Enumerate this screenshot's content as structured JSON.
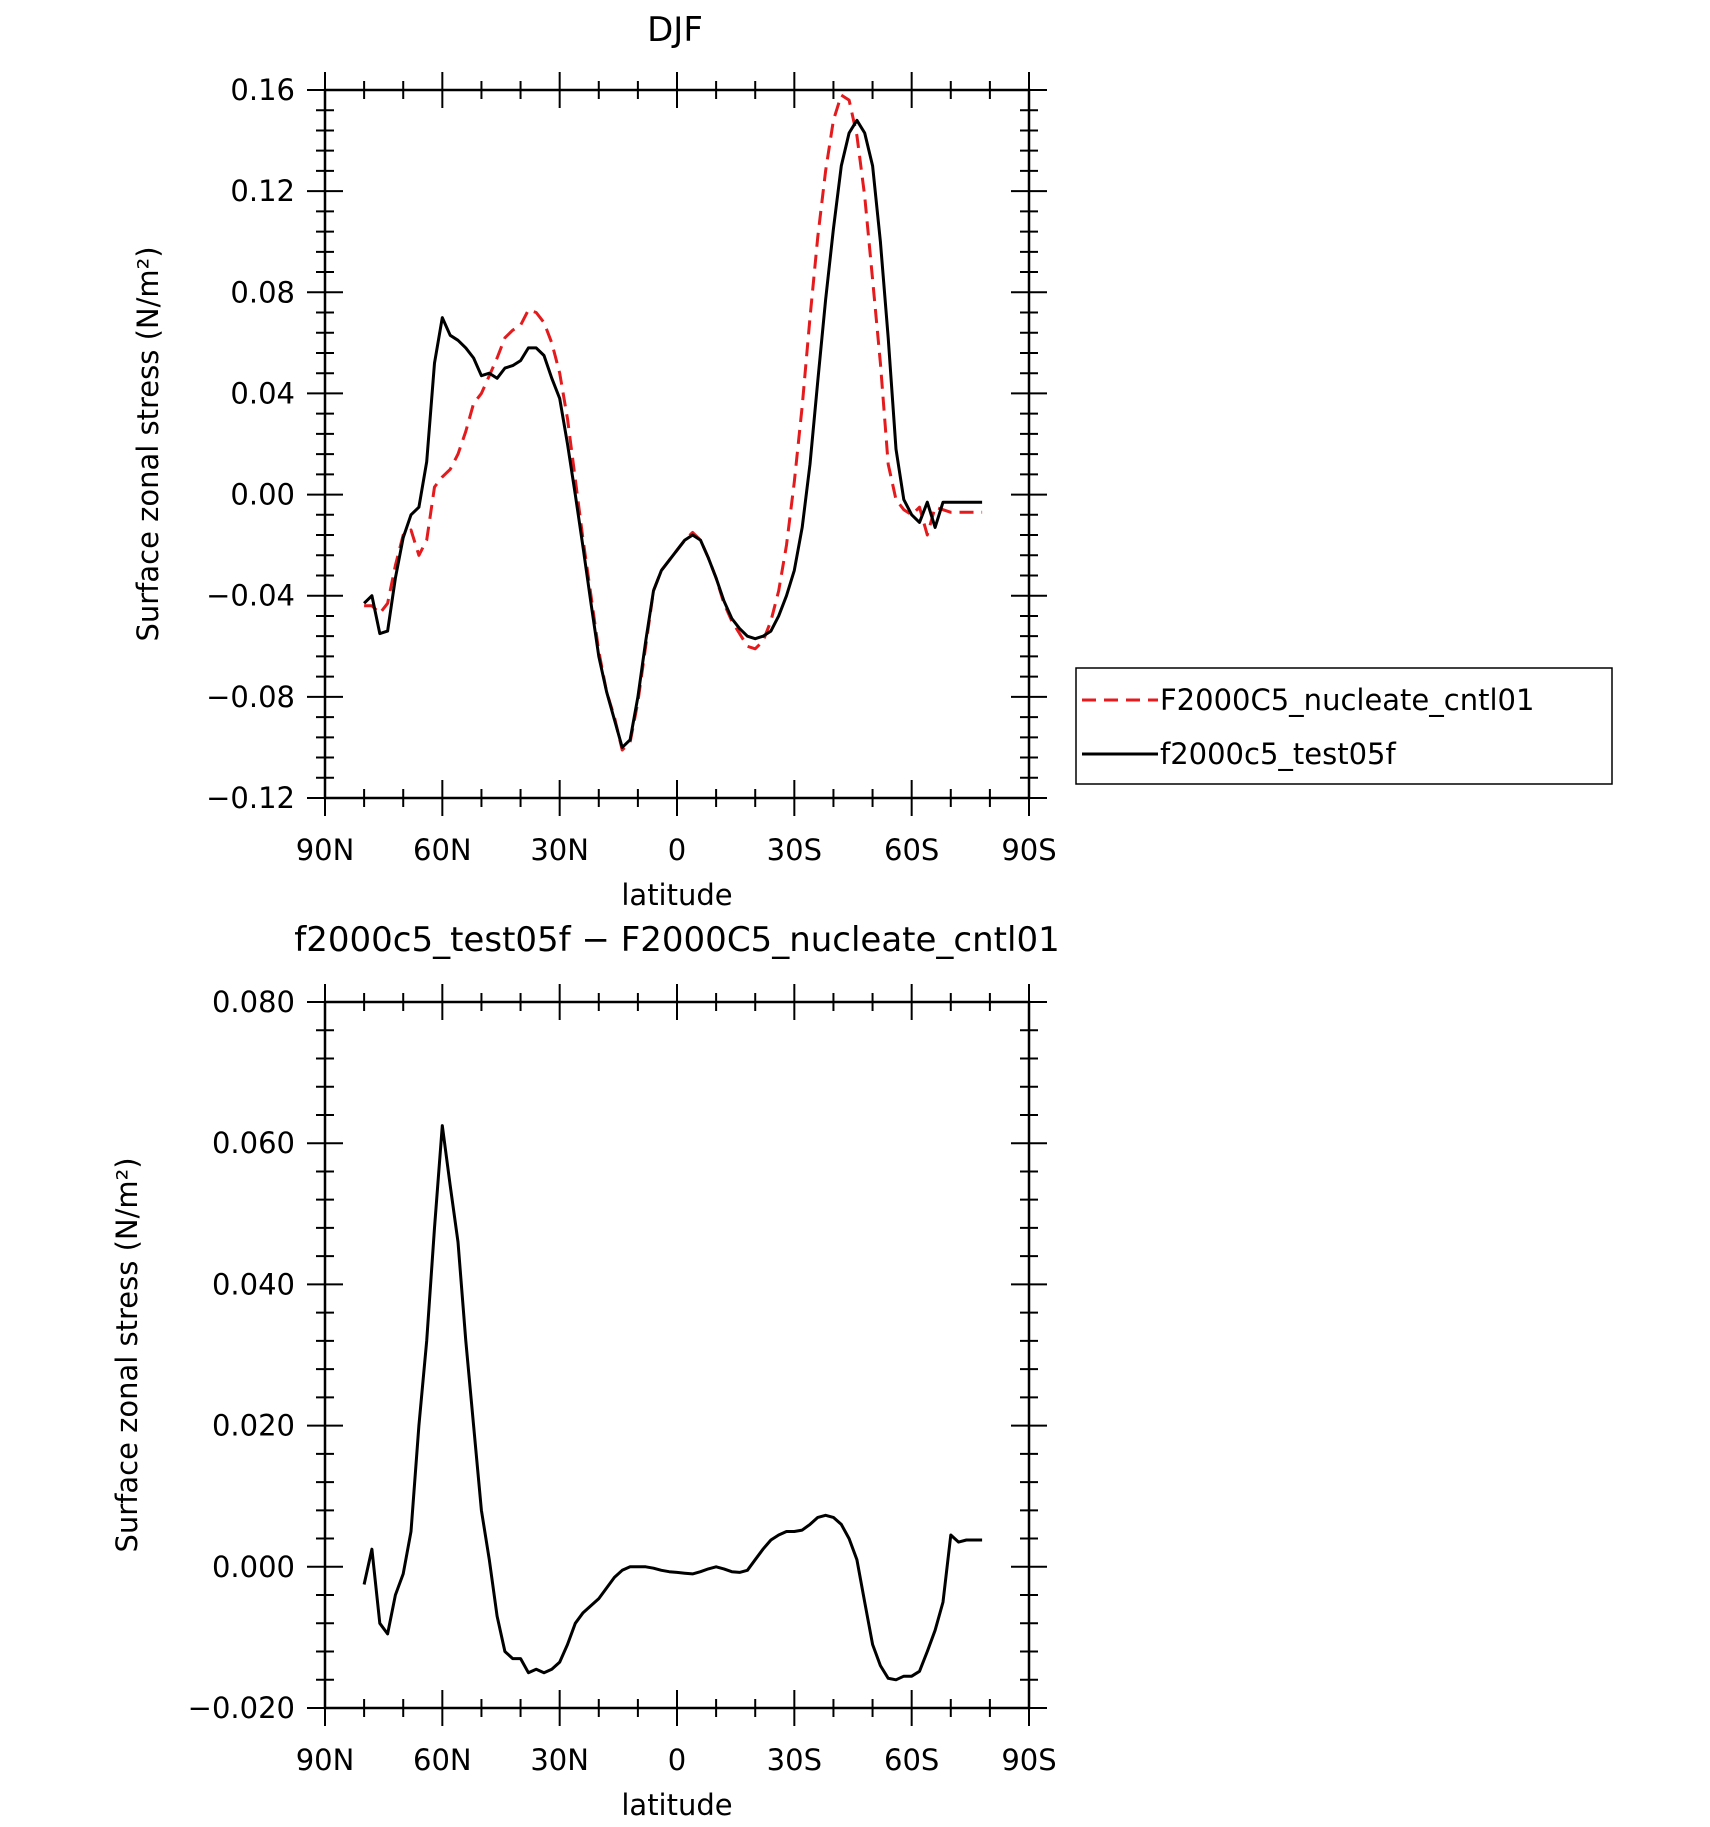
{
  "chart_data": [
    {
      "type": "line",
      "title": "DJF",
      "xlabel": "latitude",
      "ylabel": "Surface zonal stress (N/m²)",
      "xlim": [
        90,
        -90
      ],
      "ylim": [
        -0.12,
        0.16
      ],
      "xticks": [
        90,
        60,
        30,
        0,
        -30,
        -60,
        -90
      ],
      "xtick_labels": [
        "90N",
        "60N",
        "30N",
        "0",
        "30S",
        "60S",
        "90S"
      ],
      "yticks": [
        -0.12,
        -0.08,
        -0.04,
        0.0,
        0.04,
        0.08,
        0.12,
        0.16
      ],
      "ytick_labels": [
        "−0.12",
        "−0.08",
        "−0.04",
        "0.00",
        "0.04",
        "0.08",
        "0.12",
        "0.16"
      ],
      "legend": "right",
      "grid": false,
      "series": [
        {
          "name": "F2000C5_nucleate_cntl01",
          "color": "#e41a1c",
          "dash": "dashed",
          "x": [
            80,
            78,
            76,
            74,
            72,
            70,
            68,
            66,
            64,
            62,
            60,
            58,
            56,
            54,
            52,
            50,
            48,
            46,
            44,
            42,
            40,
            38,
            36,
            34,
            32,
            30,
            28,
            26,
            24,
            22,
            20,
            18,
            16,
            14,
            12,
            10,
            8,
            6,
            4,
            2,
            0,
            -2,
            -4,
            -6,
            -8,
            -10,
            -12,
            -14,
            -16,
            -18,
            -20,
            -22,
            -24,
            -26,
            -28,
            -30,
            -32,
            -34,
            -36,
            -38,
            -40,
            -42,
            -44,
            -46,
            -48,
            -50,
            -52,
            -54,
            -56,
            -58,
            -60,
            -62,
            -64,
            -66,
            -68,
            -70,
            -72,
            -74,
            -76,
            -78
          ],
          "y": [
            -0.044,
            -0.044,
            -0.047,
            -0.043,
            -0.028,
            -0.016,
            -0.014,
            -0.024,
            -0.018,
            0.003,
            0.007,
            0.01,
            0.016,
            0.025,
            0.036,
            0.04,
            0.047,
            0.054,
            0.062,
            0.065,
            0.067,
            0.073,
            0.072,
            0.068,
            0.06,
            0.048,
            0.03,
            0.006,
            -0.018,
            -0.04,
            -0.062,
            -0.078,
            -0.088,
            -0.101,
            -0.098,
            -0.082,
            -0.06,
            -0.038,
            -0.03,
            -0.026,
            -0.022,
            -0.018,
            -0.015,
            -0.018,
            -0.025,
            -0.033,
            -0.043,
            -0.05,
            -0.055,
            -0.06,
            -0.061,
            -0.058,
            -0.05,
            -0.038,
            -0.02,
            0.005,
            0.035,
            0.07,
            0.102,
            0.128,
            0.148,
            0.158,
            0.156,
            0.142,
            0.118,
            0.085,
            0.052,
            0.012,
            -0.002,
            -0.006,
            -0.008,
            -0.005,
            -0.016,
            -0.005,
            -0.006,
            -0.007,
            -0.007,
            -0.007,
            -0.007,
            -0.007
          ]
        },
        {
          "name": "f2000c5_test05f",
          "color": "#000000",
          "dash": "solid",
          "x": [
            80,
            78,
            76,
            74,
            72,
            70,
            68,
            66,
            64,
            62,
            60,
            58,
            56,
            54,
            52,
            50,
            48,
            46,
            44,
            42,
            40,
            38,
            36,
            34,
            32,
            30,
            28,
            26,
            24,
            22,
            20,
            18,
            16,
            14,
            12,
            10,
            8,
            6,
            4,
            2,
            0,
            -2,
            -4,
            -6,
            -8,
            -10,
            -12,
            -14,
            -16,
            -18,
            -20,
            -22,
            -24,
            -26,
            -28,
            -30,
            -32,
            -34,
            -36,
            -38,
            -40,
            -42,
            -44,
            -46,
            -48,
            -50,
            -52,
            -54,
            -56,
            -58,
            -60,
            -62,
            -64,
            -66,
            -68,
            -70,
            -72,
            -74,
            -76,
            -78
          ],
          "y": [
            -0.043,
            -0.04,
            -0.055,
            -0.054,
            -0.033,
            -0.017,
            -0.008,
            -0.005,
            0.013,
            0.052,
            0.07,
            0.063,
            0.061,
            0.058,
            0.054,
            0.047,
            0.048,
            0.046,
            0.05,
            0.051,
            0.053,
            0.058,
            0.058,
            0.055,
            0.046,
            0.038,
            0.02,
            0.0,
            -0.021,
            -0.043,
            -0.064,
            -0.078,
            -0.089,
            -0.1,
            -0.097,
            -0.08,
            -0.058,
            -0.038,
            -0.03,
            -0.026,
            -0.022,
            -0.018,
            -0.016,
            -0.018,
            -0.025,
            -0.033,
            -0.042,
            -0.049,
            -0.053,
            -0.056,
            -0.057,
            -0.056,
            -0.054,
            -0.048,
            -0.04,
            -0.03,
            -0.013,
            0.012,
            0.045,
            0.077,
            0.105,
            0.13,
            0.143,
            0.148,
            0.143,
            0.13,
            0.1,
            0.062,
            0.018,
            -0.002,
            -0.008,
            -0.011,
            -0.003,
            -0.013,
            -0.003,
            -0.003,
            -0.003,
            -0.003,
            -0.003,
            -0.003
          ]
        }
      ]
    },
    {
      "type": "line",
      "title": "f2000c5_test05f − F2000C5_nucleate_cntl01",
      "xlabel": "latitude",
      "ylabel": "Surface zonal stress (N/m²)",
      "xlim": [
        90,
        -90
      ],
      "ylim": [
        -0.02,
        0.08
      ],
      "xticks": [
        90,
        60,
        30,
        0,
        -30,
        -60,
        -90
      ],
      "xtick_labels": [
        "90N",
        "60N",
        "30N",
        "0",
        "30S",
        "60S",
        "90S"
      ],
      "yticks": [
        -0.02,
        0.0,
        0.02,
        0.04,
        0.06,
        0.08
      ],
      "ytick_labels": [
        "−0.020",
        "0.000",
        "0.020",
        "0.040",
        "0.060",
        "0.080"
      ],
      "grid": false,
      "series": [
        {
          "color": "#000000",
          "dash": "solid",
          "x": [
            80,
            78,
            76,
            74,
            72,
            70,
            68,
            66,
            64,
            62,
            60,
            58,
            56,
            54,
            52,
            50,
            48,
            46,
            44,
            42,
            40,
            38,
            36,
            34,
            32,
            30,
            28,
            26,
            24,
            22,
            20,
            18,
            16,
            14,
            12,
            10,
            8,
            6,
            4,
            2,
            0,
            -2,
            -4,
            -6,
            -8,
            -10,
            -12,
            -14,
            -16,
            -18,
            -20,
            -22,
            -24,
            -26,
            -28,
            -30,
            -32,
            -34,
            -36,
            -38,
            -40,
            -42,
            -44,
            -46,
            -48,
            -50,
            -52,
            -54,
            -56,
            -58,
            -60,
            -62,
            -64,
            -66,
            -68,
            -70,
            -72,
            -74,
            -76,
            -78
          ],
          "y": [
            -0.0025,
            0.0025,
            -0.008,
            -0.0095,
            -0.004,
            -0.001,
            0.005,
            0.02,
            0.032,
            0.048,
            0.0625,
            0.054,
            0.046,
            0.032,
            0.02,
            0.008,
            0.001,
            -0.007,
            -0.012,
            -0.013,
            -0.013,
            -0.015,
            -0.0145,
            -0.015,
            -0.0145,
            -0.0135,
            -0.011,
            -0.008,
            -0.0065,
            -0.0055,
            -0.0045,
            -0.003,
            -0.0015,
            -0.0005,
            0.0,
            0.0,
            0.0,
            -0.0002,
            -0.0005,
            -0.0007,
            -0.0008,
            -0.0009,
            -0.001,
            -0.0007,
            -0.0003,
            0.0,
            -0.0003,
            -0.0007,
            -0.0008,
            -0.0005,
            0.001,
            0.0025,
            0.0038,
            0.0045,
            0.005,
            0.005,
            0.0052,
            0.006,
            0.007,
            0.0073,
            0.007,
            0.006,
            0.004,
            0.001,
            -0.005,
            -0.011,
            -0.014,
            -0.0158,
            -0.016,
            -0.0155,
            -0.0155,
            -0.0148,
            -0.012,
            -0.009,
            -0.005,
            0.0045,
            0.0035,
            0.0038,
            0.0038,
            0.0038
          ]
        }
      ]
    }
  ]
}
